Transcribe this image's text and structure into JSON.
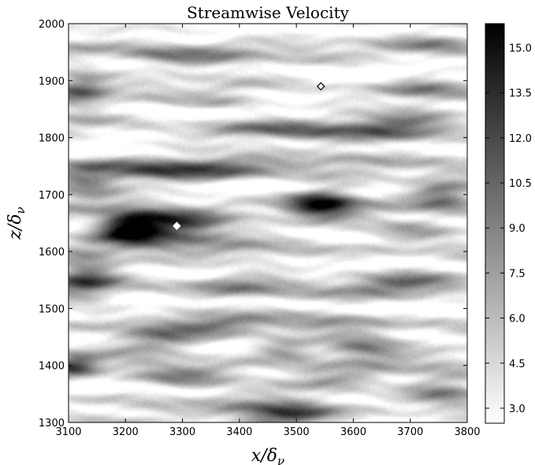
{
  "chart_data": {
    "type": "heatmap",
    "title": "Streamwise Velocity",
    "xlabel": "x/δ",
    "xlabel_sub": "ν",
    "ylabel": "z/δ",
    "ylabel_sub": "ν",
    "xlim": [
      3100,
      3800
    ],
    "ylim": [
      1300,
      2000
    ],
    "x_ticks": [
      "3100",
      "3200",
      "3300",
      "3400",
      "3500",
      "3600",
      "3700",
      "3800"
    ],
    "y_ticks": [
      "1300",
      "1400",
      "1500",
      "1600",
      "1700",
      "1800",
      "1900",
      "2000"
    ],
    "colorbar": {
      "range": [
        2.5,
        15.8
      ],
      "ticks": [
        "3.0",
        "4.5",
        "6.0",
        "7.5",
        "9.0",
        "10.5",
        "12.0",
        "13.5",
        "15.0"
      ],
      "colormap": "gray_r"
    },
    "markers": [
      {
        "x": 3290,
        "y": 1645,
        "style": "filled-white-diamond"
      },
      {
        "x": 3543,
        "y": 1890,
        "style": "open-diamond"
      }
    ],
    "field_features": [
      {
        "x": 3270,
        "z": 1645,
        "sx": 75,
        "sz": 22,
        "value": 15.2
      },
      {
        "x": 3205,
        "z": 1640,
        "sx": 35,
        "sz": 18,
        "value": 13.5
      },
      {
        "x": 3545,
        "z": 1685,
        "sx": 42,
        "sz": 18,
        "value": 15.2
      },
      {
        "x": 3480,
        "z": 1310,
        "sx": 60,
        "sz": 16,
        "value": 14.5
      },
      {
        "x": 3300,
        "z": 1745,
        "sx": 130,
        "sz": 16,
        "value": 10.5
      },
      {
        "x": 3120,
        "z": 1885,
        "sx": 35,
        "sz": 30,
        "value": 9.5
      },
      {
        "x": 3300,
        "z": 1945,
        "sx": 90,
        "sz": 18,
        "value": 8.5
      },
      {
        "x": 3470,
        "z": 1815,
        "sx": 90,
        "sz": 14,
        "value": 8.5
      },
      {
        "x": 3680,
        "z": 1815,
        "sx": 70,
        "sz": 22,
        "value": 9.5
      },
      {
        "x": 3720,
        "z": 1885,
        "sx": 45,
        "sz": 16,
        "value": 7.5
      },
      {
        "x": 3130,
        "z": 1555,
        "sx": 40,
        "sz": 35,
        "value": 10.5
      },
      {
        "x": 3400,
        "z": 1540,
        "sx": 70,
        "sz": 16,
        "value": 8.5
      },
      {
        "x": 3690,
        "z": 1540,
        "sx": 70,
        "sz": 16,
        "value": 9.0
      },
      {
        "x": 3340,
        "z": 1475,
        "sx": 75,
        "sz": 15,
        "value": 8.5
      },
      {
        "x": 3570,
        "z": 1475,
        "sx": 60,
        "sz": 14,
        "value": 8.0
      },
      {
        "x": 3620,
        "z": 1430,
        "sx": 50,
        "sz": 15,
        "value": 11.0
      },
      {
        "x": 3480,
        "z": 1430,
        "sx": 40,
        "sz": 13,
        "value": 10.0
      },
      {
        "x": 3250,
        "z": 1440,
        "sx": 55,
        "sz": 14,
        "value": 9.0
      },
      {
        "x": 3110,
        "z": 1400,
        "sx": 30,
        "sz": 15,
        "value": 11.0
      },
      {
        "x": 3300,
        "z": 1380,
        "sx": 70,
        "sz": 18,
        "value": 9.5
      },
      {
        "x": 3560,
        "z": 1370,
        "sx": 70,
        "sz": 12,
        "value": 7.5
      },
      {
        "x": 3760,
        "z": 1360,
        "sx": 50,
        "sz": 20,
        "value": 10.0
      },
      {
        "x": 3700,
        "z": 1640,
        "sx": 60,
        "sz": 14,
        "value": 9.0
      },
      {
        "x": 3460,
        "z": 1590,
        "sx": 80,
        "sz": 12,
        "value": 6.5
      },
      {
        "x": 3130,
        "z": 1720,
        "sx": 40,
        "sz": 20,
        "value": 9.0
      },
      {
        "x": 3600,
        "z": 1760,
        "sx": 70,
        "sz": 12,
        "value": 7.5
      },
      {
        "x": 3760,
        "z": 1700,
        "sx": 40,
        "sz": 20,
        "value": 10.0
      },
      {
        "x": 3150,
        "z": 1300,
        "sx": 60,
        "sz": 10,
        "value": 7.0
      },
      {
        "x": 3750,
        "z": 1960,
        "sx": 60,
        "sz": 16,
        "value": 7.5
      },
      {
        "x": 3380,
        "z": 1860,
        "sx": 50,
        "sz": 10,
        "value": 7.0
      }
    ]
  }
}
